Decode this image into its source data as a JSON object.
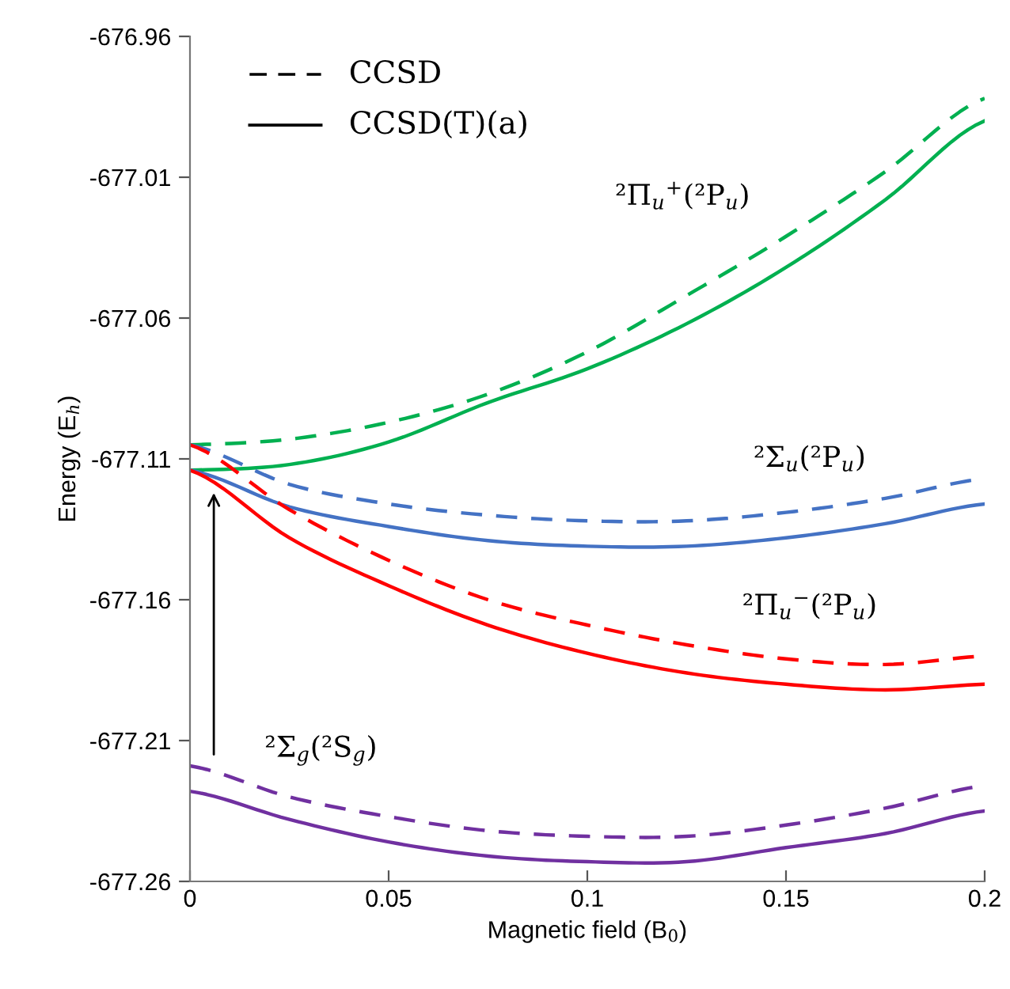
{
  "chart_data": {
    "type": "line",
    "xlabel": "Magnetic field (B$_{0}$)",
    "ylabel": "Energy (E$_{h}$)",
    "x": [
      0,
      0.025,
      0.05,
      0.075,
      0.1,
      0.125,
      0.15,
      0.175,
      0.2
    ],
    "series": [
      {
        "color": "#00b050",
        "line_style": "dashed",
        "values": [
          -677.105,
          -677.103,
          -677.097,
          -677.087,
          -677.072,
          -677.052,
          -677.031,
          -677.008,
          -676.982
        ]
      },
      {
        "color": "#00b050",
        "line_style": "solid",
        "values": [
          -677.114,
          -677.112,
          -677.104,
          -677.09,
          -677.078,
          -677.062,
          -677.042,
          -677.018,
          -676.99
        ]
      },
      {
        "color": "#4472c4",
        "line_style": "dashed",
        "values": [
          -677.105,
          -677.119,
          -677.126,
          -677.13,
          -677.132,
          -677.132,
          -677.129,
          -677.124,
          -677.117
        ]
      },
      {
        "color": "#4472c4",
        "line_style": "solid",
        "values": [
          -677.114,
          -677.127,
          -677.134,
          -677.139,
          -677.141,
          -677.141,
          -677.138,
          -677.133,
          -677.126
        ]
      },
      {
        "color": "#ff0000",
        "line_style": "dashed",
        "values": [
          -677.105,
          -677.128,
          -677.146,
          -677.16,
          -677.169,
          -677.176,
          -677.181,
          -677.183,
          -677.18
        ]
      },
      {
        "color": "#ff0000",
        "line_style": "solid",
        "values": [
          -677.114,
          -677.138,
          -677.155,
          -677.169,
          -677.179,
          -677.186,
          -677.19,
          -677.192,
          -677.19
        ]
      },
      {
        "color": "#7030a0",
        "line_style": "dashed",
        "values": [
          -677.219,
          -677.23,
          -677.237,
          -677.242,
          -677.244,
          -677.244,
          -677.24,
          -677.234,
          -677.226
        ]
      },
      {
        "color": "#7030a0",
        "line_style": "solid",
        "values": [
          -677.228,
          -677.238,
          -677.246,
          -677.251,
          -677.253,
          -677.253,
          -677.248,
          -677.243,
          -677.235
        ]
      }
    ],
    "annotations": [
      "CCSD",
      "CCSD(T)(a)",
      "²Π$_{u}$$^{+}$(²P$_{u}$)",
      "²Σ$_{u}$(²P$_{u}$)",
      "²Π$_{u}$$^{−}$(²P$_{u}$)",
      "²Σ$_{g}$(²S$_{g}$)"
    ],
    "xlim": [
      0,
      0.2
    ],
    "xticks": [
      0,
      0.05,
      0.1,
      0.15,
      0.2
    ],
    "ylim": [
      -677.26,
      -676.96
    ],
    "yticks": [
      -677.26,
      -677.21,
      -677.16,
      -677.11,
      -677.06,
      -677.01,
      -676.96
    ],
    "grid": false
  }
}
